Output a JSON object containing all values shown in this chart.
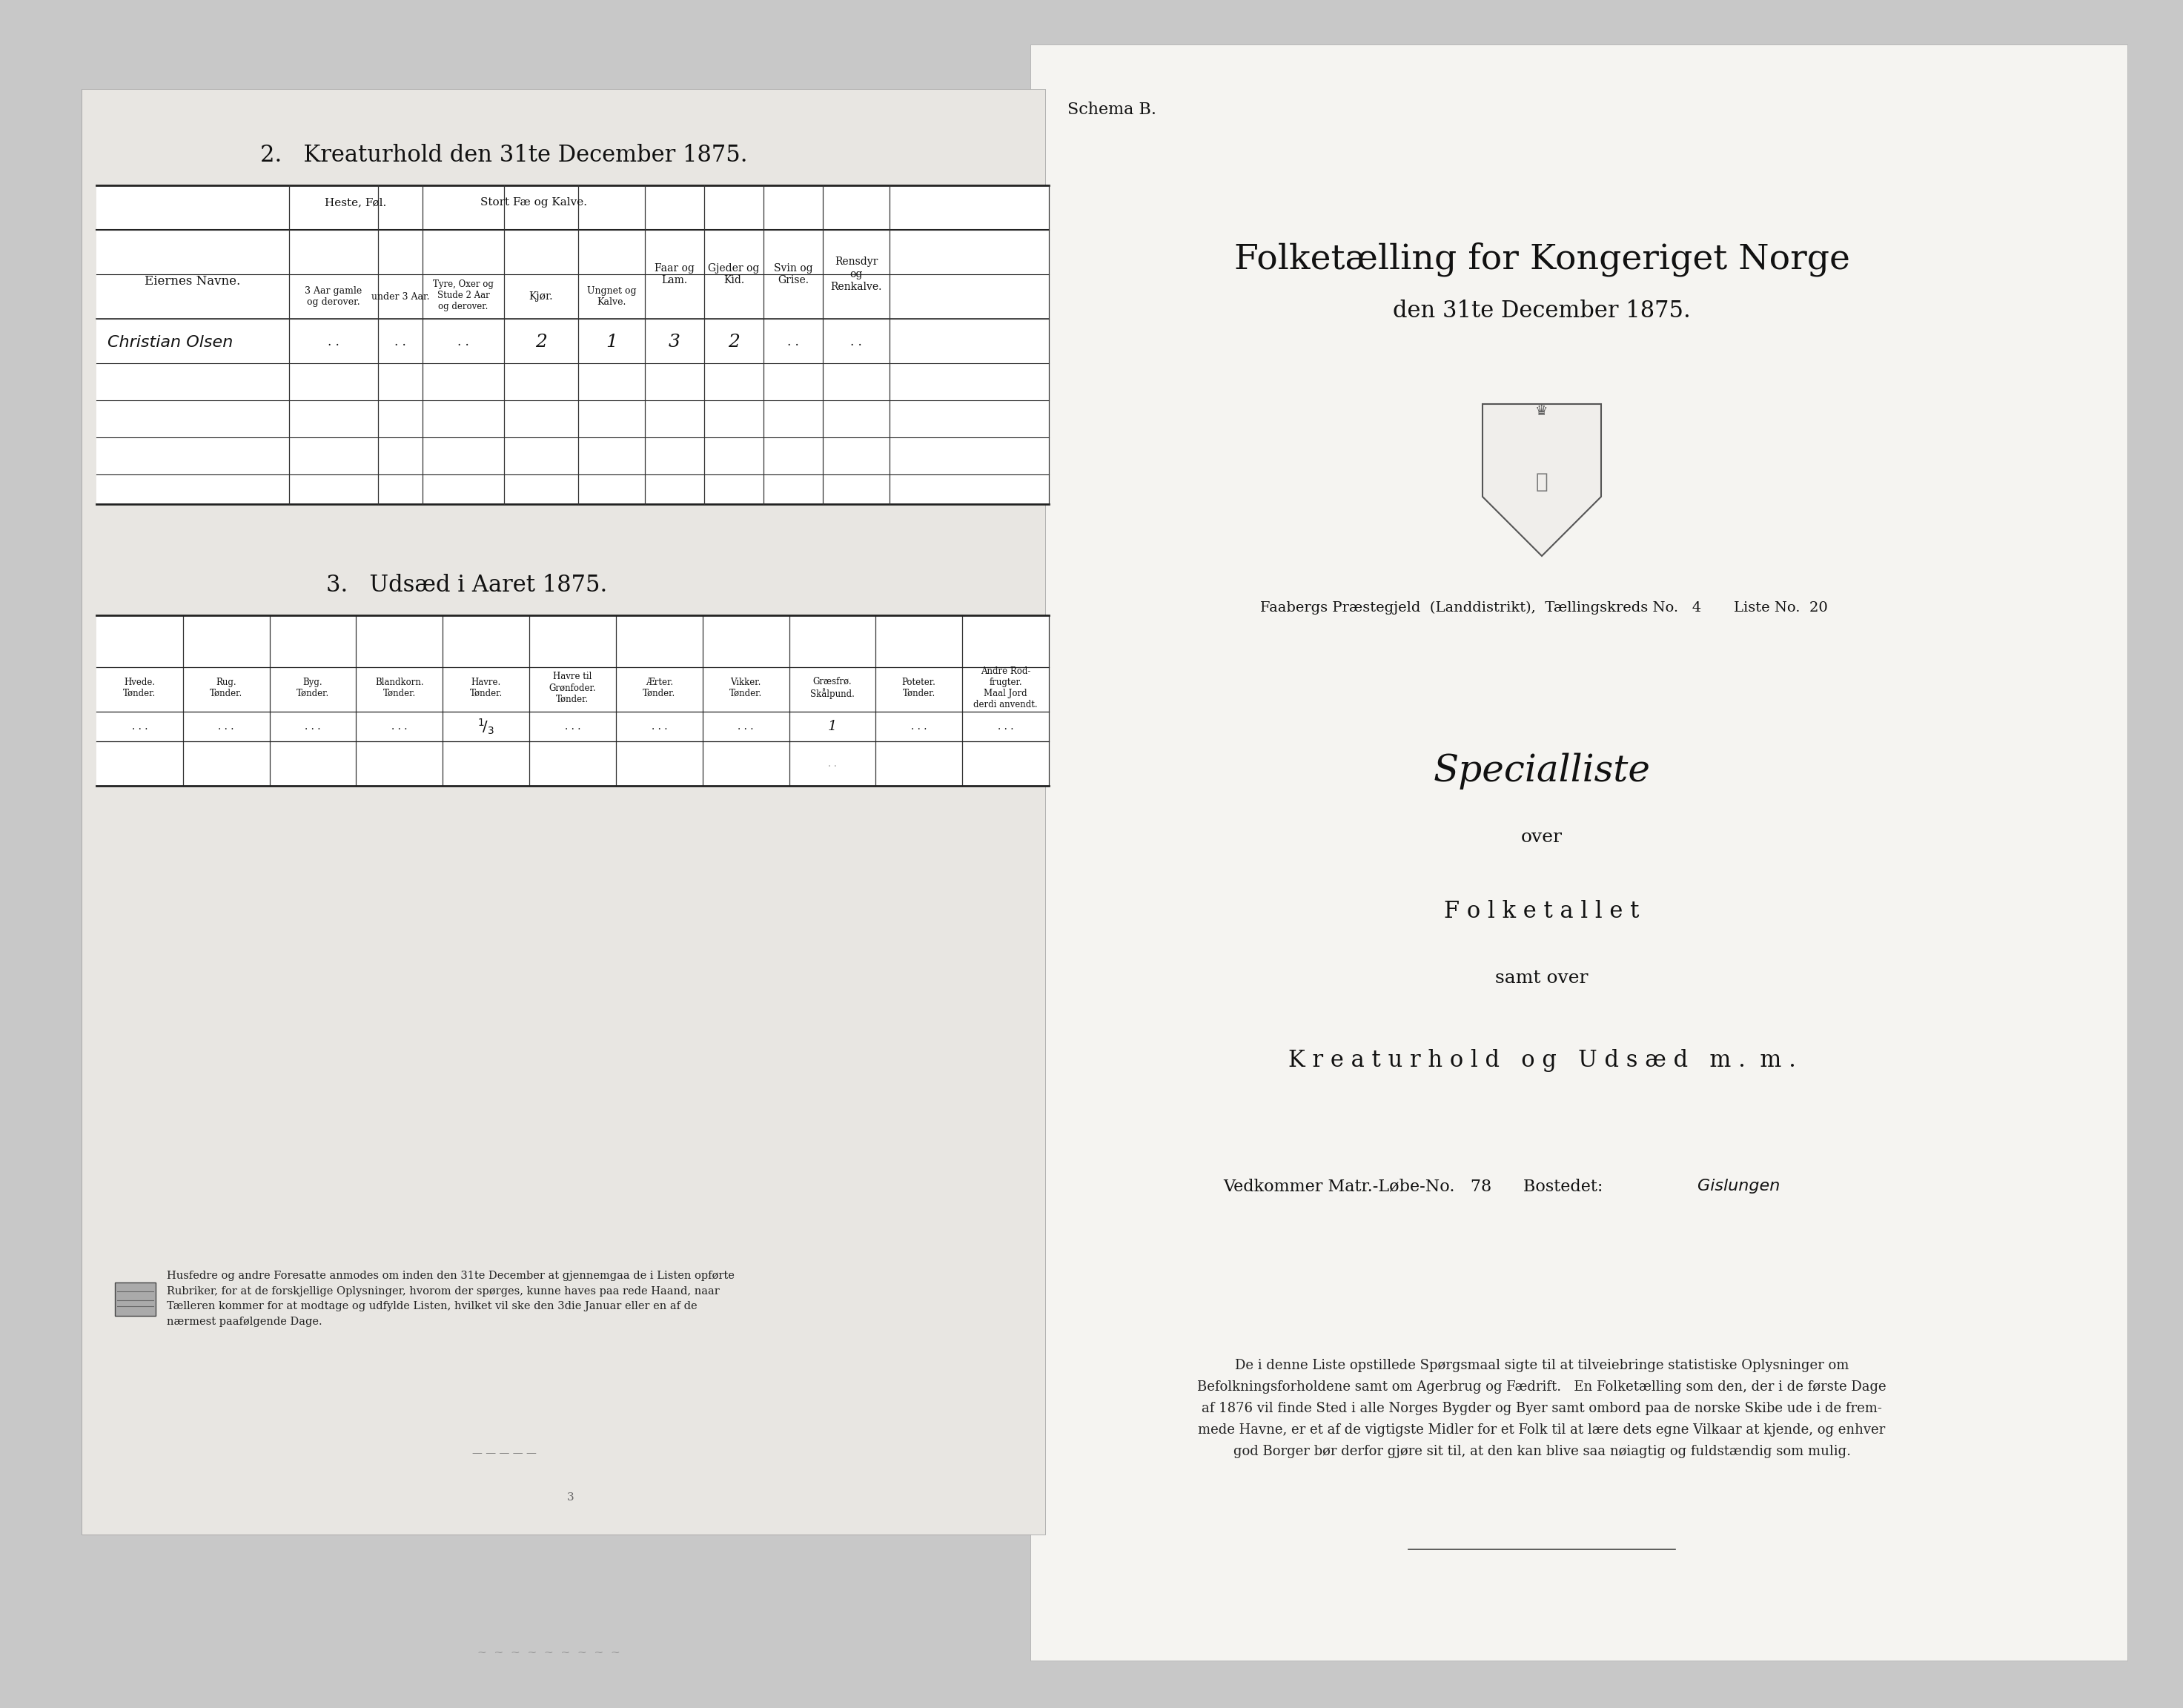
{
  "bg_color": "#c8c8c8",
  "right_paper_color": "#f5f4f1",
  "left_paper_color": "#e8e6e2",
  "section2_title": "2.   Kreaturhold den 31te December 1875.",
  "section3_title": "3.   Udsæd i Aaret 1875.",
  "right_schema": "Schema B.",
  "right_title_line1": "Folketælling for Kongeriget Norge",
  "right_title_line2": "den 31te December 1875.",
  "right_prestegjeld": "Faabergs Præstegjeld  (Landdistrikt),  Tællingskreds No.   4       Liste No.  20",
  "right_specialliste": "Specialliste",
  "right_over1": "over",
  "right_folketallet": "F o l k e t a l l e t",
  "right_samt_over": "samt over",
  "right_kreaturhold": "K r e a t u r h o l d   o g   U d s æ d   m .  m .",
  "right_vedkommer": "Vedkommer Matr.-Løbe-No.   78      Bostedet:",
  "right_vedkommer_sted": "Gislungen",
  "right_body_text": "De i denne Liste opstillede Spørgsmaal sigte til at tilveiebringe statistiske Oplysninger om\nBefolkningsforholdene samt om Agerbrug og Fædrift.   En Folketælling som den, der i de første Dage\naf 1876 vil finde Sted i alle Norges Bygder og Byer samt ombord paa de norske Skibe ude i de frem-\nmede Havne, er et af de vigtigste Midler for et Folk til at lære dets egne Vilkaar at kjende, og enhver\ngod Borger bør derfor gjøre sit til, at den kan blive saa nøiagtig og fuldstændig som mulig.",
  "left_footer_text": "Husfedre og andre Foresatte anmodes om inden den 31te December at gjennemgaa de i Listen opførte\nRubriker, for at de forskjellige Oplysninger, hvorom der spørges, kunne haves paa rede Haand, naar\nTælleren kommer for at modtage og udfylde Listen, hvilket vil ske den 3die Januar eller en af de\nnærmest paafølgende Dage."
}
